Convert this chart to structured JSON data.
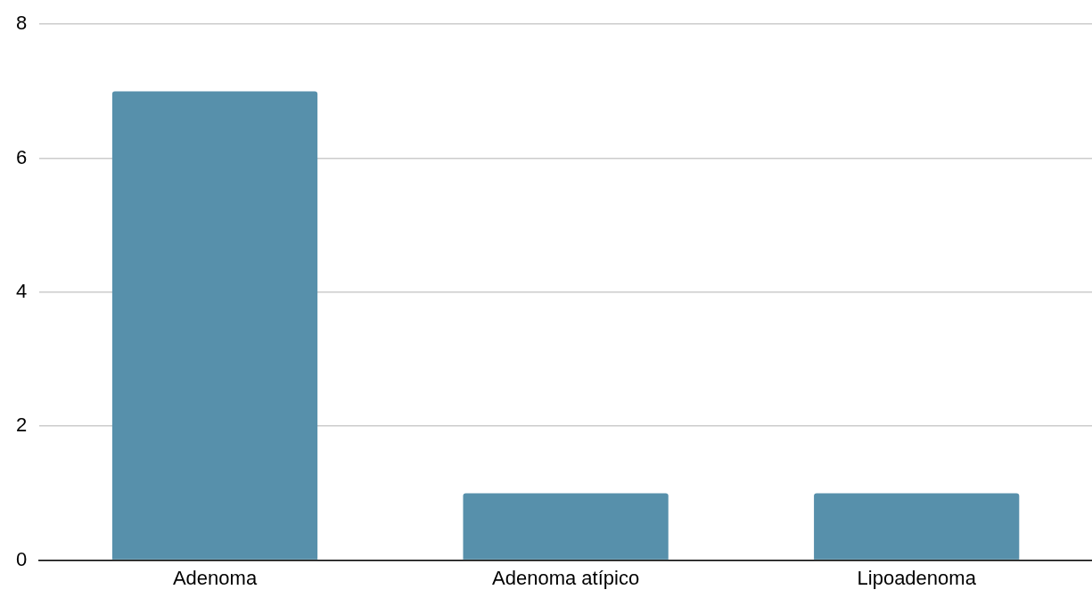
{
  "chart_data": {
    "type": "bar",
    "categories": [
      "Adenoma",
      "Adenoma atípico",
      "Lipoadenoma"
    ],
    "values": [
      7,
      1,
      1
    ],
    "color": "#5790ab",
    "ylim": [
      0,
      8
    ],
    "yticks": [
      0,
      2,
      4,
      6,
      8
    ],
    "grid": "y",
    "legend": false
  }
}
